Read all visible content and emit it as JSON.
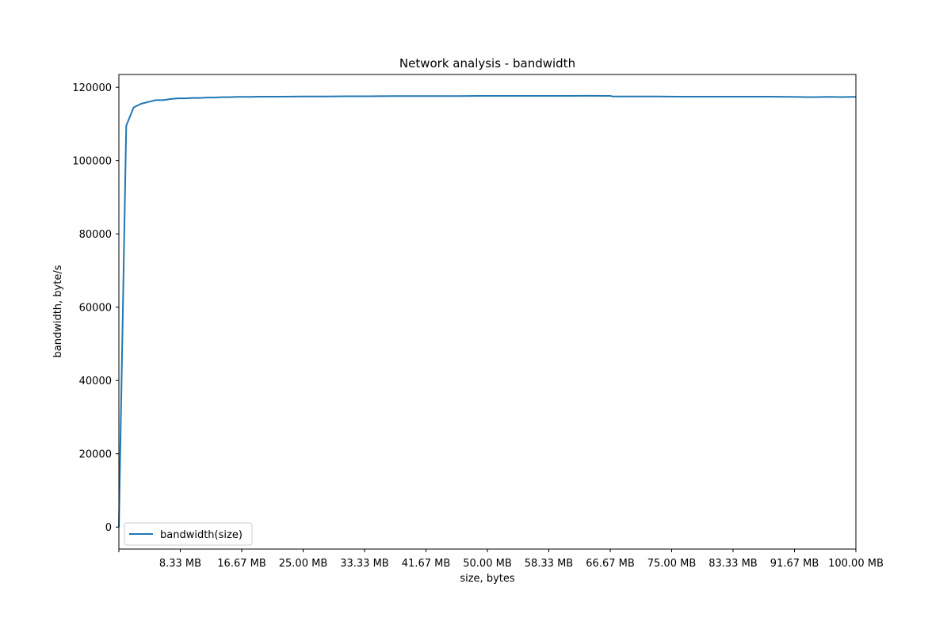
{
  "chart_data": {
    "type": "line",
    "title": "Network analysis - bandwidth",
    "xlabel": "size, bytes",
    "ylabel": "bandwidth, byte/s",
    "xlim_mb": [
      0,
      100
    ],
    "ylim": [
      -6000,
      123500
    ],
    "x_unit": "MB",
    "grid": false,
    "legend_placement": "lower-left",
    "color": "#1f77b4",
    "xticks": [
      {
        "value": 0,
        "label": ""
      },
      {
        "value": 8.33,
        "label": "8.33 MB"
      },
      {
        "value": 16.67,
        "label": "16.67 MB"
      },
      {
        "value": 25,
        "label": "25.00 MB"
      },
      {
        "value": 33.33,
        "label": "33.33 MB"
      },
      {
        "value": 41.67,
        "label": "41.67 MB"
      },
      {
        "value": 50,
        "label": "50.00 MB"
      },
      {
        "value": 58.33,
        "label": "58.33 MB"
      },
      {
        "value": 66.67,
        "label": "66.67 MB"
      },
      {
        "value": 75,
        "label": "75.00 MB"
      },
      {
        "value": 83.33,
        "label": "83.33 MB"
      },
      {
        "value": 91.67,
        "label": "91.67 MB"
      },
      {
        "value": 100,
        "label": "100.00 MB"
      }
    ],
    "yticks": [
      {
        "value": 0,
        "label": "0"
      },
      {
        "value": 20000,
        "label": "20000"
      },
      {
        "value": 40000,
        "label": "40000"
      },
      {
        "value": 60000,
        "label": "60000"
      },
      {
        "value": 80000,
        "label": "80000"
      },
      {
        "value": 100000,
        "label": "100000"
      },
      {
        "value": 120000,
        "label": "120000"
      }
    ],
    "series": [
      {
        "name": "bandwidth(size)",
        "x": [
          0,
          1,
          2,
          3,
          4,
          5,
          6,
          7,
          8,
          9,
          10,
          11,
          12,
          13,
          14,
          15,
          16,
          17,
          18,
          19,
          20,
          22,
          25,
          28,
          31,
          34,
          37,
          40,
          43,
          46,
          49,
          52,
          55,
          58,
          61,
          64,
          66.67,
          67,
          70,
          73,
          76,
          79,
          82,
          85,
          88,
          91,
          94,
          95,
          96,
          98,
          100
        ],
        "y": [
          0,
          109500,
          114500,
          115500,
          116000,
          116500,
          116500,
          116800,
          117000,
          117000,
          117100,
          117100,
          117200,
          117200,
          117300,
          117300,
          117400,
          117400,
          117400,
          117450,
          117450,
          117450,
          117500,
          117500,
          117550,
          117550,
          117600,
          117600,
          117600,
          117600,
          117650,
          117650,
          117650,
          117650,
          117650,
          117700,
          117650,
          117500,
          117500,
          117500,
          117450,
          117450,
          117450,
          117450,
          117450,
          117400,
          117300,
          117350,
          117400,
          117350,
          117400
        ]
      }
    ]
  }
}
